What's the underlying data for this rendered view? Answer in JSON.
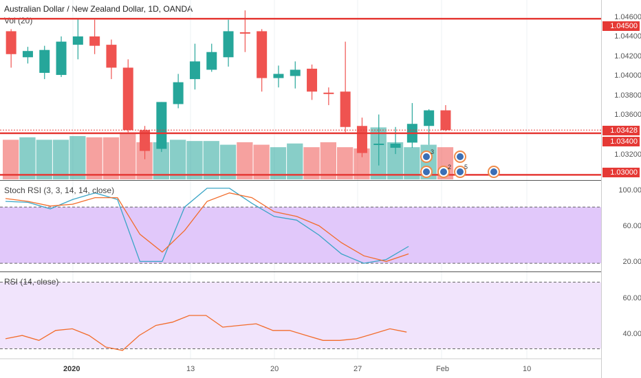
{
  "header": {
    "symbol_line": "Australian Dollar / New Zealand Dollar, 1D, OANDA",
    "vol_label": "Vol (20)"
  },
  "price_axis": {
    "ticks": [
      "1.04600",
      "1.04400",
      "1.04200",
      "1.04000",
      "1.03800",
      "1.03600",
      "1.03200"
    ],
    "price_labels": [
      {
        "text": "1.04500",
        "value": 1.045
      },
      {
        "text": "1.03428",
        "value": 1.03428
      },
      {
        "text": "1.03400",
        "value": 1.034
      },
      {
        "text": "1.03000",
        "value": 1.03
      }
    ]
  },
  "stoch": {
    "label": "Stoch RSI (3, 3, 14, 14, close)",
    "ticks": [
      "100.00",
      "60.00",
      "20.00"
    ]
  },
  "rsi": {
    "label": "RSI (14, close)",
    "ticks": [
      "60.00",
      "40.00"
    ]
  },
  "x_axis": {
    "ticks": [
      "2020",
      "13",
      "20",
      "27",
      "Feb",
      "10"
    ]
  },
  "events": {
    "badges": [
      "3",
      "2",
      "5"
    ]
  },
  "colors": {
    "up": "#26a69a",
    "down": "#ef5350",
    "level_line": "#e53935",
    "stoch_band": "#e1c8fa",
    "rsi_band": "#f1e4fc",
    "k_line": "#3aa5c6",
    "d_line": "#f26c2b",
    "rsi_line": "#f26c2b"
  },
  "chart_data": [
    {
      "type": "candlestick",
      "title": "Australian Dollar / New Zealand Dollar, 1D, OANDA",
      "ylim": [
        1.0295,
        1.0468
      ],
      "horizontal_levels": [
        1.045,
        1.034,
        1.03
      ],
      "candles": [
        {
          "o": 1.0438,
          "h": 1.044,
          "l": 1.0403,
          "c": 1.0416
        },
        {
          "o": 1.0413,
          "h": 1.0423,
          "l": 1.0407,
          "c": 1.0419
        },
        {
          "o": 1.0398,
          "h": 1.0424,
          "l": 1.0392,
          "c": 1.042
        },
        {
          "o": 1.0396,
          "h": 1.0433,
          "l": 1.0394,
          "c": 1.0428
        },
        {
          "o": 1.0425,
          "h": 1.045,
          "l": 1.0411,
          "c": 1.0433
        },
        {
          "o": 1.0433,
          "h": 1.0449,
          "l": 1.0416,
          "c": 1.0424
        },
        {
          "o": 1.0425,
          "h": 1.043,
          "l": 1.0392,
          "c": 1.0403
        },
        {
          "o": 1.0403,
          "h": 1.0411,
          "l": 1.0341,
          "c": 1.0343
        },
        {
          "o": 1.0343,
          "h": 1.0347,
          "l": 1.0315,
          "c": 1.0323
        },
        {
          "o": 1.0325,
          "h": 1.037,
          "l": 1.0322,
          "c": 1.037
        },
        {
          "o": 1.0368,
          "h": 1.0397,
          "l": 1.0364,
          "c": 1.0389
        },
        {
          "o": 1.0392,
          "h": 1.0426,
          "l": 1.0382,
          "c": 1.0409
        },
        {
          "o": 1.0401,
          "h": 1.0426,
          "l": 1.0399,
          "c": 1.0418
        },
        {
          "o": 1.0413,
          "h": 1.0449,
          "l": 1.0404,
          "c": 1.0438
        },
        {
          "o": 1.0437,
          "h": 1.0458,
          "l": 1.0418,
          "c": 1.0436
        },
        {
          "o": 1.0438,
          "h": 1.044,
          "l": 1.038,
          "c": 1.0393
        },
        {
          "o": 1.0393,
          "h": 1.0405,
          "l": 1.0384,
          "c": 1.0397
        },
        {
          "o": 1.0395,
          "h": 1.0409,
          "l": 1.0383,
          "c": 1.0401
        },
        {
          "o": 1.0402,
          "h": 1.0406,
          "l": 1.0372,
          "c": 1.038
        },
        {
          "o": 1.0379,
          "h": 1.0384,
          "l": 1.0367,
          "c": 1.0378
        },
        {
          "o": 1.038,
          "h": 1.0428,
          "l": 1.0341,
          "c": 1.0346
        },
        {
          "o": 1.0347,
          "h": 1.0355,
          "l": 1.0317,
          "c": 1.0321
        },
        {
          "o": 1.033,
          "h": 1.0358,
          "l": 1.0309,
          "c": 1.033
        },
        {
          "o": 1.0326,
          "h": 1.0346,
          "l": 1.032,
          "c": 1.033
        },
        {
          "o": 1.0331,
          "h": 1.0369,
          "l": 1.0326,
          "c": 1.0349
        },
        {
          "o": 1.0347,
          "h": 1.0363,
          "l": 1.0329,
          "c": 1.0362
        },
        {
          "o": 1.0362,
          "h": 1.0367,
          "l": 1.0342,
          "c": 1.0343
        }
      ]
    },
    {
      "type": "bar",
      "title": "Vol (20)",
      "values": [
        32,
        34,
        32,
        32,
        35,
        34,
        34,
        38,
        30,
        30,
        32,
        31,
        31,
        28,
        30,
        28,
        26,
        29,
        26,
        30,
        26,
        25,
        42,
        30,
        26,
        28,
        26
      ]
    },
    {
      "type": "line",
      "title": "Stoch RSI (3, 3, 14, 14, close)",
      "ylim": [
        12,
        108
      ],
      "bands": [
        20,
        80
      ],
      "series": [
        {
          "name": "K",
          "values": [
            86,
            85,
            78,
            88,
            95,
            88,
            22,
            22,
            80,
            100,
            100,
            84,
            70,
            66,
            50,
            30,
            20,
            24,
            38
          ]
        },
        {
          "name": "D",
          "values": [
            89,
            86,
            81,
            83,
            90,
            90,
            51,
            32,
            55,
            86,
            95,
            90,
            75,
            70,
            60,
            42,
            28,
            22,
            30
          ]
        }
      ]
    },
    {
      "type": "line",
      "title": "RSI (14, close)",
      "ylim": [
        24,
        76
      ],
      "bands": [
        30,
        70
      ],
      "series": [
        {
          "name": "RSI",
          "values": [
            36,
            38,
            35,
            41,
            42,
            38,
            31,
            29,
            38,
            44,
            46,
            50,
            50,
            43,
            44,
            45,
            41,
            41,
            38,
            35,
            35,
            36,
            39,
            42,
            40
          ]
        }
      ]
    }
  ]
}
